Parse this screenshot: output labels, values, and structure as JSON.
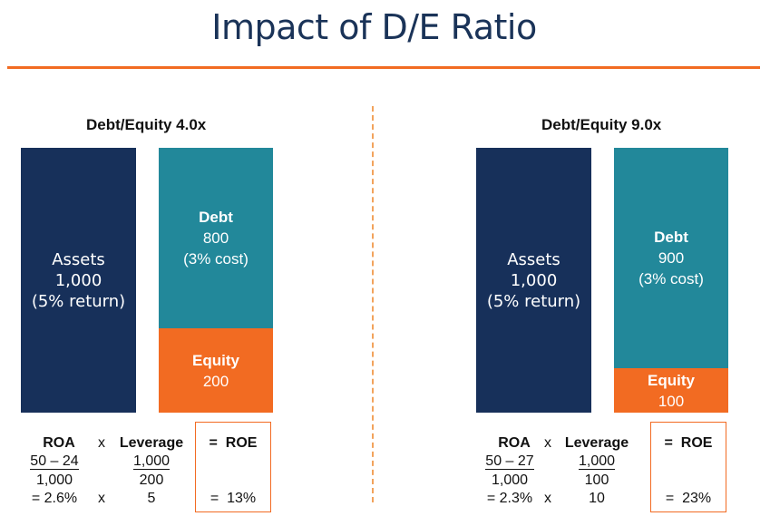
{
  "title": "Impact of D/E Ratio",
  "colors": {
    "navy": "#17305a",
    "teal": "#22889a",
    "orange": "#f26b22"
  },
  "panels": [
    {
      "heading": "Debt/Equity 4.0x",
      "assets": {
        "label": "Assets",
        "value": "1,000",
        "note": "(5% return)"
      },
      "debt": {
        "label": "Debt",
        "value": "800",
        "note": "(3% cost)"
      },
      "equity": {
        "label": "Equity",
        "value": "200",
        "share": 0.2
      },
      "roa": {
        "label": "ROA",
        "numerator": "50 – 24",
        "denominator": "1,000",
        "result": "= 2.6%"
      },
      "times": "x",
      "leverage": {
        "label": "Leverage",
        "numerator": "1,000",
        "denominator": "200",
        "result": "5"
      },
      "roe": {
        "label": "=  ROE",
        "result": "=  13%"
      }
    },
    {
      "heading": "Debt/Equity 9.0x",
      "assets": {
        "label": "Assets",
        "value": "1,000",
        "note": "(5% return)"
      },
      "debt": {
        "label": "Debt",
        "value": "900",
        "note": "(3% cost)"
      },
      "equity": {
        "label": "Equity",
        "value": "100",
        "share": 0.1
      },
      "roa": {
        "label": "ROA",
        "numerator": "50 – 27",
        "denominator": "1,000",
        "result": "= 2.3%"
      },
      "times": "x",
      "leverage": {
        "label": "Leverage",
        "numerator": "1,000",
        "denominator": "100",
        "result": "10"
      },
      "roe": {
        "label": "=  ROE",
        "result": "=  23%"
      }
    }
  ]
}
